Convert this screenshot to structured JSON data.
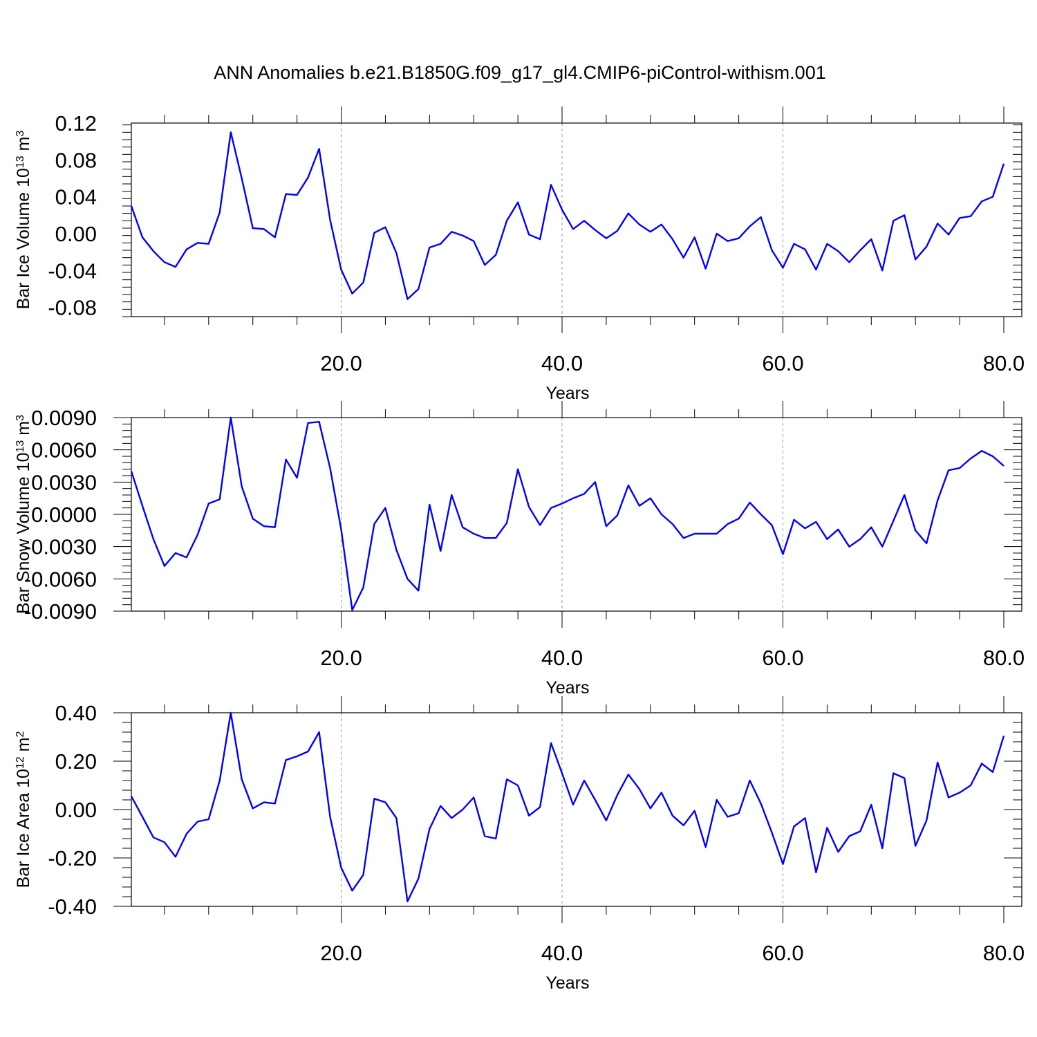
{
  "title": "ANN Anomalies b.e21.B1850G.f09_g17_gl4.CMIP6-piControl-withism.001",
  "colors": {
    "line": "#0000ff",
    "axis": "#000000",
    "grid": "#999999",
    "background": "#ffffff"
  },
  "chart_data": [
    {
      "type": "line",
      "ylabel": {
        "base": "Bar Ice Volume 10",
        "exp": "13",
        "unit": " m",
        "unitExp": "3"
      },
      "xlabel": "Years",
      "xlim": [
        1,
        80
      ],
      "ylim": [
        -0.09,
        0.12
      ],
      "xticks": [
        20,
        40,
        60,
        80
      ],
      "xtick_labels": [
        "20.0",
        "40.0",
        "60.0",
        "80.0"
      ],
      "yticks": [
        0.12,
        0.08,
        0.04,
        0.0,
        -0.04,
        -0.08
      ],
      "ytick_labels": [
        "0.12",
        "0.08",
        "0.04",
        "0.00",
        "-0.04",
        "-0.08"
      ],
      "grid": "dashed vertical at 20, 40, 60",
      "x": [
        1,
        2,
        3,
        4,
        5,
        6,
        7,
        8,
        9,
        10,
        11,
        12,
        13,
        14,
        15,
        16,
        17,
        18,
        19,
        20,
        21,
        22,
        23,
        24,
        25,
        26,
        27,
        28,
        29,
        30,
        31,
        32,
        33,
        34,
        35,
        36,
        37,
        38,
        39,
        40,
        41,
        42,
        43,
        44,
        45,
        46,
        47,
        48,
        49,
        50,
        51,
        52,
        53,
        54,
        55,
        56,
        57,
        58,
        59,
        60,
        61,
        62,
        63,
        64,
        65,
        66,
        67,
        68,
        69,
        70,
        71,
        72,
        73,
        74,
        75,
        76,
        77,
        78,
        79,
        80
      ],
      "values": [
        0.03,
        -0.004,
        -0.019,
        -0.031,
        -0.036,
        -0.017,
        -0.01,
        -0.011,
        0.023,
        0.11,
        0.06,
        0.006,
        0.005,
        -0.004,
        0.043,
        0.042,
        0.061,
        0.092,
        0.015,
        -0.039,
        -0.065,
        -0.053,
        0.001,
        0.007,
        -0.021,
        -0.071,
        -0.06,
        -0.015,
        -0.011,
        0.002,
        -0.002,
        -0.008,
        -0.034,
        -0.023,
        0.014,
        0.034,
        -0.001,
        -0.006,
        0.053,
        0.026,
        0.005,
        0.014,
        0.004,
        -0.005,
        0.003,
        0.022,
        0.01,
        0.002,
        0.01,
        -0.006,
        -0.026,
        -0.004,
        -0.038,
        0.0,
        -0.008,
        -0.005,
        0.008,
        0.018,
        -0.018,
        -0.037,
        -0.011,
        -0.017,
        -0.039,
        -0.011,
        -0.019,
        -0.031,
        -0.018,
        -0.006,
        -0.04,
        0.014,
        0.02,
        -0.028,
        -0.014,
        0.011,
        -0.001,
        0.017,
        0.019,
        0.035,
        0.04,
        0.076
      ]
    },
    {
      "type": "line",
      "ylabel": {
        "base": "Bar Snow Volume 10",
        "exp": "13",
        "unit": " m",
        "unitExp": "3"
      },
      "xlabel": "Years",
      "xlim": [
        1,
        80
      ],
      "ylim": [
        -0.009,
        0.009
      ],
      "xticks": [
        20,
        40,
        60,
        80
      ],
      "xtick_labels": [
        "20.0",
        "40.0",
        "60.0",
        "80.0"
      ],
      "yticks": [
        0.009,
        0.006,
        0.003,
        0.0,
        -0.003,
        -0.006,
        -0.009
      ],
      "ytick_labels": [
        "0.0090",
        "0.0060",
        "0.0030",
        "0.0000",
        "-0.0030",
        "-0.0060",
        "-0.0090"
      ],
      "grid": "dashed vertical at 20, 40, 60",
      "x": [
        1,
        2,
        3,
        4,
        5,
        6,
        7,
        8,
        9,
        10,
        11,
        12,
        13,
        14,
        15,
        16,
        17,
        18,
        19,
        20,
        21,
        22,
        23,
        24,
        25,
        26,
        27,
        28,
        29,
        30,
        31,
        32,
        33,
        34,
        35,
        36,
        37,
        38,
        39,
        40,
        41,
        42,
        43,
        44,
        45,
        46,
        47,
        48,
        49,
        50,
        51,
        52,
        53,
        54,
        55,
        56,
        57,
        58,
        59,
        60,
        61,
        62,
        63,
        64,
        65,
        66,
        67,
        68,
        69,
        70,
        71,
        72,
        73,
        74,
        75,
        76,
        77,
        78,
        79,
        80
      ],
      "values": [
        0.004,
        0.0008,
        -0.0023,
        -0.0048,
        -0.0036,
        -0.004,
        -0.0019,
        0.001,
        0.0014,
        0.009,
        0.0026,
        -0.0004,
        -0.0011,
        -0.0012,
        0.0051,
        0.0034,
        0.0085,
        0.0086,
        0.0043,
        -0.0014,
        -0.0089,
        -0.0068,
        -0.0009,
        0.0006,
        -0.0033,
        -0.006,
        -0.0071,
        0.0009,
        -0.0034,
        0.0018,
        -0.0012,
        -0.0018,
        -0.0022,
        -0.0022,
        -0.0008,
        0.0042,
        0.0007,
        -0.001,
        0.0006,
        0.001,
        0.0015,
        0.0019,
        0.003,
        -0.0011,
        -0.0001,
        0.0027,
        0.0008,
        0.0015,
        0.0,
        -0.0009,
        -0.0022,
        -0.0018,
        -0.0018,
        -0.0018,
        -0.0009,
        -0.0004,
        0.0011,
        0.0,
        -0.001,
        -0.0037,
        -0.0005,
        -0.0013,
        -0.0007,
        -0.0023,
        -0.0014,
        -0.003,
        -0.0023,
        -0.0012,
        -0.003,
        -0.0006,
        0.0018,
        -0.0015,
        -0.0027,
        0.0013,
        0.0041,
        0.0043,
        0.0052,
        0.0059,
        0.0054,
        0.0045
      ]
    },
    {
      "type": "line",
      "ylabel": {
        "base": "Bar Ice Area 10",
        "exp": "12",
        "unit": " m",
        "unitExp": "2"
      },
      "xlabel": "Years",
      "xlim": [
        1,
        80
      ],
      "ylim": [
        -0.4,
        0.4
      ],
      "xticks": [
        20,
        40,
        60,
        80
      ],
      "xtick_labels": [
        "20.0",
        "40.0",
        "60.0",
        "80.0"
      ],
      "yticks": [
        0.4,
        0.2,
        0.0,
        -0.2,
        -0.4
      ],
      "ytick_labels": [
        "0.40",
        "0.20",
        "0.00",
        "-0.20",
        "-0.40"
      ],
      "grid": "dashed vertical at 20, 40, 60",
      "x": [
        1,
        2,
        3,
        4,
        5,
        6,
        7,
        8,
        9,
        10,
        11,
        12,
        13,
        14,
        15,
        16,
        17,
        18,
        19,
        20,
        21,
        22,
        23,
        24,
        25,
        26,
        27,
        28,
        29,
        30,
        31,
        32,
        33,
        34,
        35,
        36,
        37,
        38,
        39,
        40,
        41,
        42,
        43,
        44,
        45,
        46,
        47,
        48,
        49,
        50,
        51,
        52,
        53,
        54,
        55,
        56,
        57,
        58,
        59,
        60,
        61,
        62,
        63,
        64,
        65,
        66,
        67,
        68,
        69,
        70,
        71,
        72,
        73,
        74,
        75,
        76,
        77,
        78,
        79,
        80
      ],
      "values": [
        0.055,
        -0.03,
        -0.115,
        -0.135,
        -0.195,
        -0.1,
        -0.05,
        -0.04,
        0.12,
        0.4,
        0.125,
        0.005,
        0.03,
        0.025,
        0.205,
        0.22,
        0.24,
        0.32,
        -0.03,
        -0.24,
        -0.335,
        -0.27,
        0.045,
        0.03,
        -0.035,
        -0.38,
        -0.285,
        -0.08,
        0.015,
        -0.035,
        0.0,
        0.05,
        -0.11,
        -0.12,
        0.125,
        0.1,
        -0.025,
        0.01,
        0.275,
        0.15,
        0.02,
        0.12,
        0.04,
        -0.045,
        0.06,
        0.145,
        0.085,
        0.005,
        0.07,
        -0.025,
        -0.065,
        -0.005,
        -0.155,
        0.04,
        -0.03,
        -0.015,
        0.12,
        0.025,
        -0.095,
        -0.225,
        -0.07,
        -0.035,
        -0.26,
        -0.075,
        -0.175,
        -0.11,
        -0.09,
        0.02,
        -0.16,
        0.15,
        0.13,
        -0.15,
        -0.045,
        0.195,
        0.05,
        0.07,
        0.1,
        0.19,
        0.155,
        0.305
      ]
    }
  ]
}
